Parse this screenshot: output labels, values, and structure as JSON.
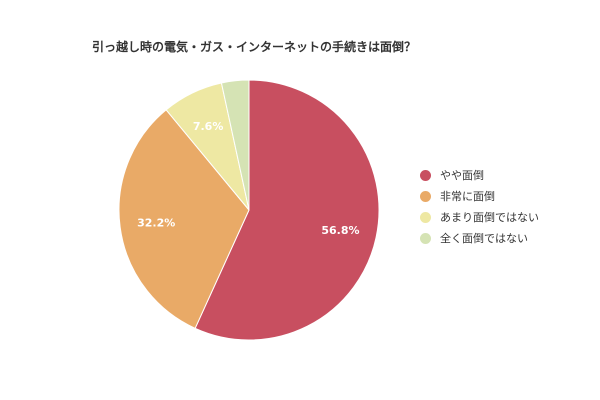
{
  "chart_data": {
    "type": "pie",
    "title": "引っ越し時の電気・ガス・インターネットの手続きは面倒？",
    "legend_position": "right",
    "slices": [
      {
        "name": "やや面倒",
        "value": 56.8,
        "label": "56.8%",
        "color": "#c84f60"
      },
      {
        "name": "非常に面倒",
        "value": 32.2,
        "label": "32.2%",
        "color": "#e9aa67"
      },
      {
        "name": "あまり面倒ではない",
        "value": 7.6,
        "label": "7.6%",
        "color": "#eee8a3"
      },
      {
        "name": "全く面倒ではない",
        "value": 3.4,
        "label": "",
        "color": "#d5e3b4"
      }
    ]
  }
}
